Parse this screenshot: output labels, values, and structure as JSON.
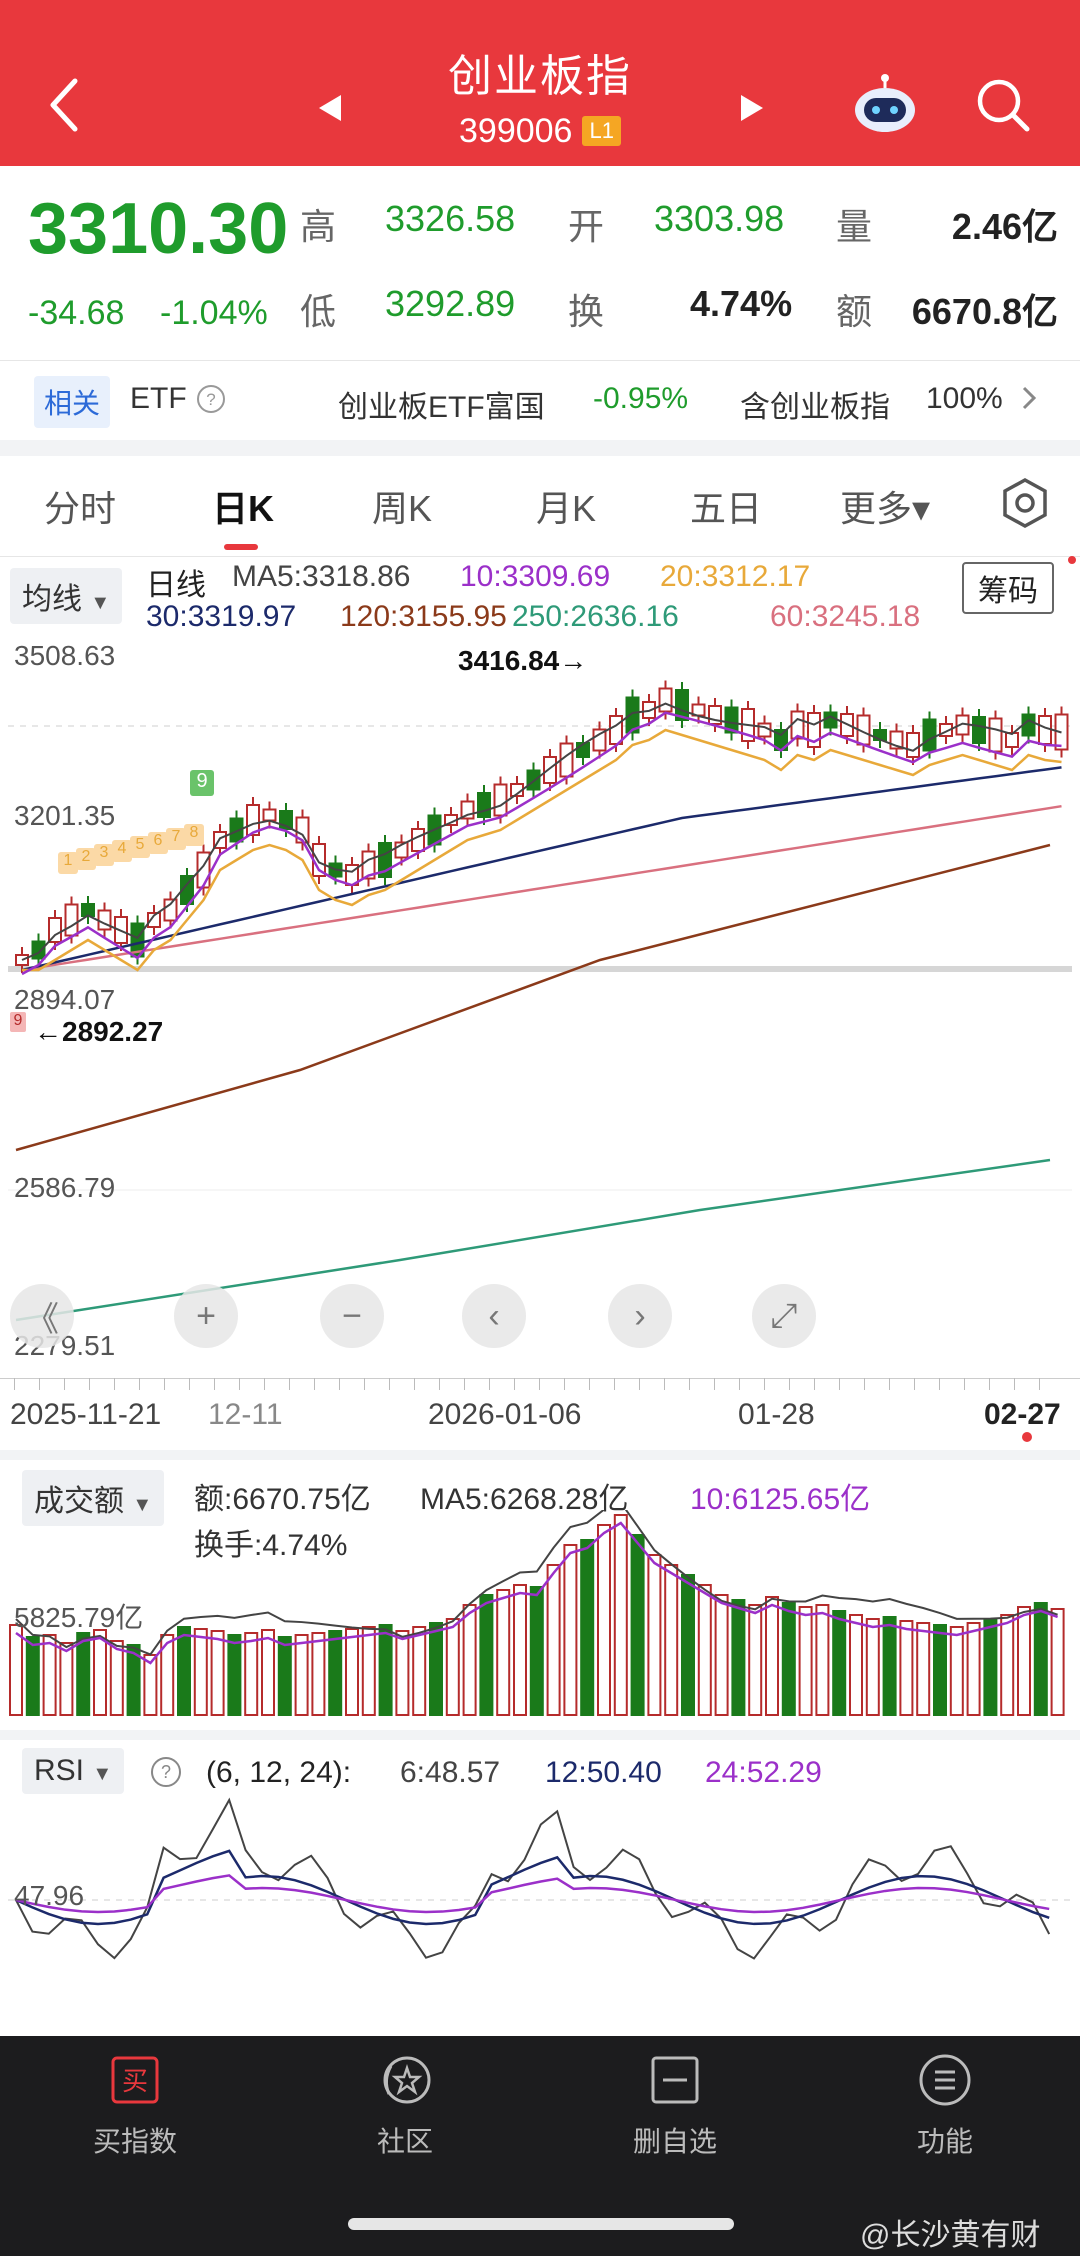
{
  "header": {
    "title": "创业板指",
    "code": "399006",
    "level_badge": "L1"
  },
  "quote": {
    "price": "3310.30",
    "change": "-34.68",
    "change_pct": "-1.04%",
    "high_label": "高",
    "high": "3326.58",
    "open_label": "开",
    "open": "3303.98",
    "volume_label": "量",
    "volume": "2.46亿",
    "low_label": "低",
    "low": "3292.89",
    "turnover_label": "换",
    "turnover": "4.74%",
    "amount_label": "额",
    "amount": "6670.8亿"
  },
  "etf_bar": {
    "tag": "相关",
    "etf_label": "ETF",
    "help_icon": "question-circle-icon",
    "name": "创业板ETF富国",
    "change": "-0.95%",
    "contain_text": "含创业板指",
    "contain_pct": "100%"
  },
  "tabs": [
    {
      "label": "分时",
      "active": false
    },
    {
      "label": "日K",
      "active": true
    },
    {
      "label": "周K",
      "active": false
    },
    {
      "label": "月K",
      "active": false
    },
    {
      "label": "五日",
      "active": false
    },
    {
      "label": "更多▾",
      "active": false
    }
  ],
  "kline": {
    "indicator_select": "均线",
    "period_label": "日线",
    "ma5": "MA5:3318.86",
    "ma10": "10:3309.69",
    "ma20": "20:3312.17",
    "ma30": "30:3319.97",
    "ma120": "120:3155.95",
    "ma250": "250:2636.16",
    "ma60": "60:3245.18",
    "chip_button": "筹码",
    "y_labels": [
      "3508.63",
      "3201.35",
      "2894.07",
      "2586.79",
      "2279.51"
    ],
    "high_marker": "3416.84→",
    "low_marker": "←2892.27",
    "badge_9": "9",
    "seq_badges": [
      "1",
      "2",
      "3",
      "4",
      "5",
      "6",
      "7",
      "8"
    ],
    "x_labels": [
      "2025-11-21",
      "12-11",
      "2026-01-06",
      "01-28",
      "02-27"
    ],
    "colors": {
      "ma5": "#444444",
      "ma10": "#9b30c9",
      "ma20": "#e8a93a",
      "ma30": "#1c2a6b",
      "ma120": "#8b3a1a",
      "ma250": "#2e9a78",
      "ma60": "#d9707f",
      "up": "#b52b2b",
      "down": "#1a7a1a"
    }
  },
  "controls": [
    {
      "name": "collapse-button",
      "glyph": "《"
    },
    {
      "name": "zoom-in-button",
      "glyph": "+"
    },
    {
      "name": "zoom-out-button",
      "glyph": "−"
    },
    {
      "name": "scroll-left-button",
      "glyph": "‹"
    },
    {
      "name": "scroll-right-button",
      "glyph": "›"
    },
    {
      "name": "fullscreen-button",
      "glyph": "⤢"
    }
  ],
  "volume_panel": {
    "select": "成交额",
    "amount": "额:6670.75亿",
    "ma5": "MA5:6268.28亿",
    "ma10": "10:6125.65亿",
    "turnover": "换手:4.74%",
    "y_label": "5825.79亿"
  },
  "rsi_panel": {
    "select": "RSI",
    "params": "(6, 12, 24):",
    "rsi6": "6:48.57",
    "rsi12": "12:50.40",
    "rsi24": "24:52.29",
    "y_label": "47.96"
  },
  "bottom_nav": [
    {
      "label": "买指数",
      "icon": "buy-icon"
    },
    {
      "label": "社区",
      "icon": "community-icon"
    },
    {
      "label": "删自选",
      "icon": "remove-favorite-icon"
    },
    {
      "label": "功能",
      "icon": "menu-icon"
    }
  ],
  "watermark": "@长沙黄有财"
}
